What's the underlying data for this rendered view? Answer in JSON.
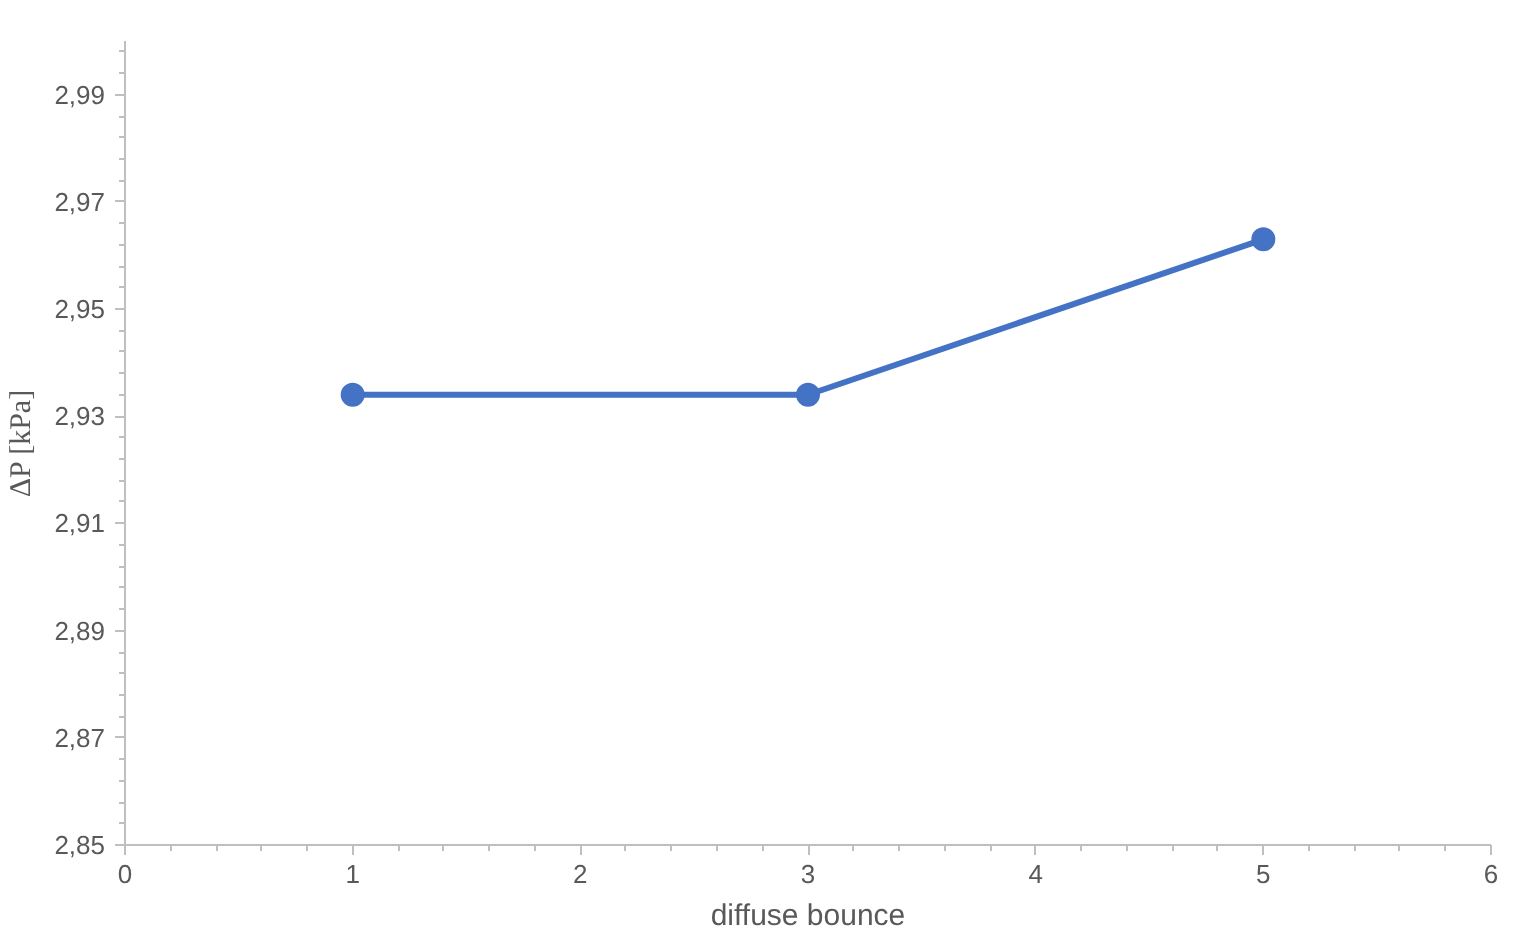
{
  "chart_data": {
    "type": "line",
    "xlabel": "diffuse bounce",
    "ylabel": "ΔP [kPa]",
    "x": [
      1,
      3,
      5
    ],
    "series": [
      {
        "color": "#4472c4",
        "values": [
          2.934,
          2.934,
          2.963
        ]
      }
    ],
    "xlim": [
      0,
      6
    ],
    "xticks": [
      0,
      1,
      2,
      3,
      4,
      5,
      6
    ],
    "ylim": [
      2.85,
      3.0
    ],
    "yticks": [
      {
        "value": 2.85,
        "label": "2,85"
      },
      {
        "value": 2.87,
        "label": "2,87"
      },
      {
        "value": 2.89,
        "label": "2,89"
      },
      {
        "value": 2.91,
        "label": "2,91"
      },
      {
        "value": 2.93,
        "label": "2,93"
      },
      {
        "value": 2.95,
        "label": "2,95"
      },
      {
        "value": 2.97,
        "label": "2,97"
      },
      {
        "value": 2.99,
        "label": "2,99"
      }
    ],
    "grid": false,
    "marker": "circle",
    "line_style": "solid"
  }
}
